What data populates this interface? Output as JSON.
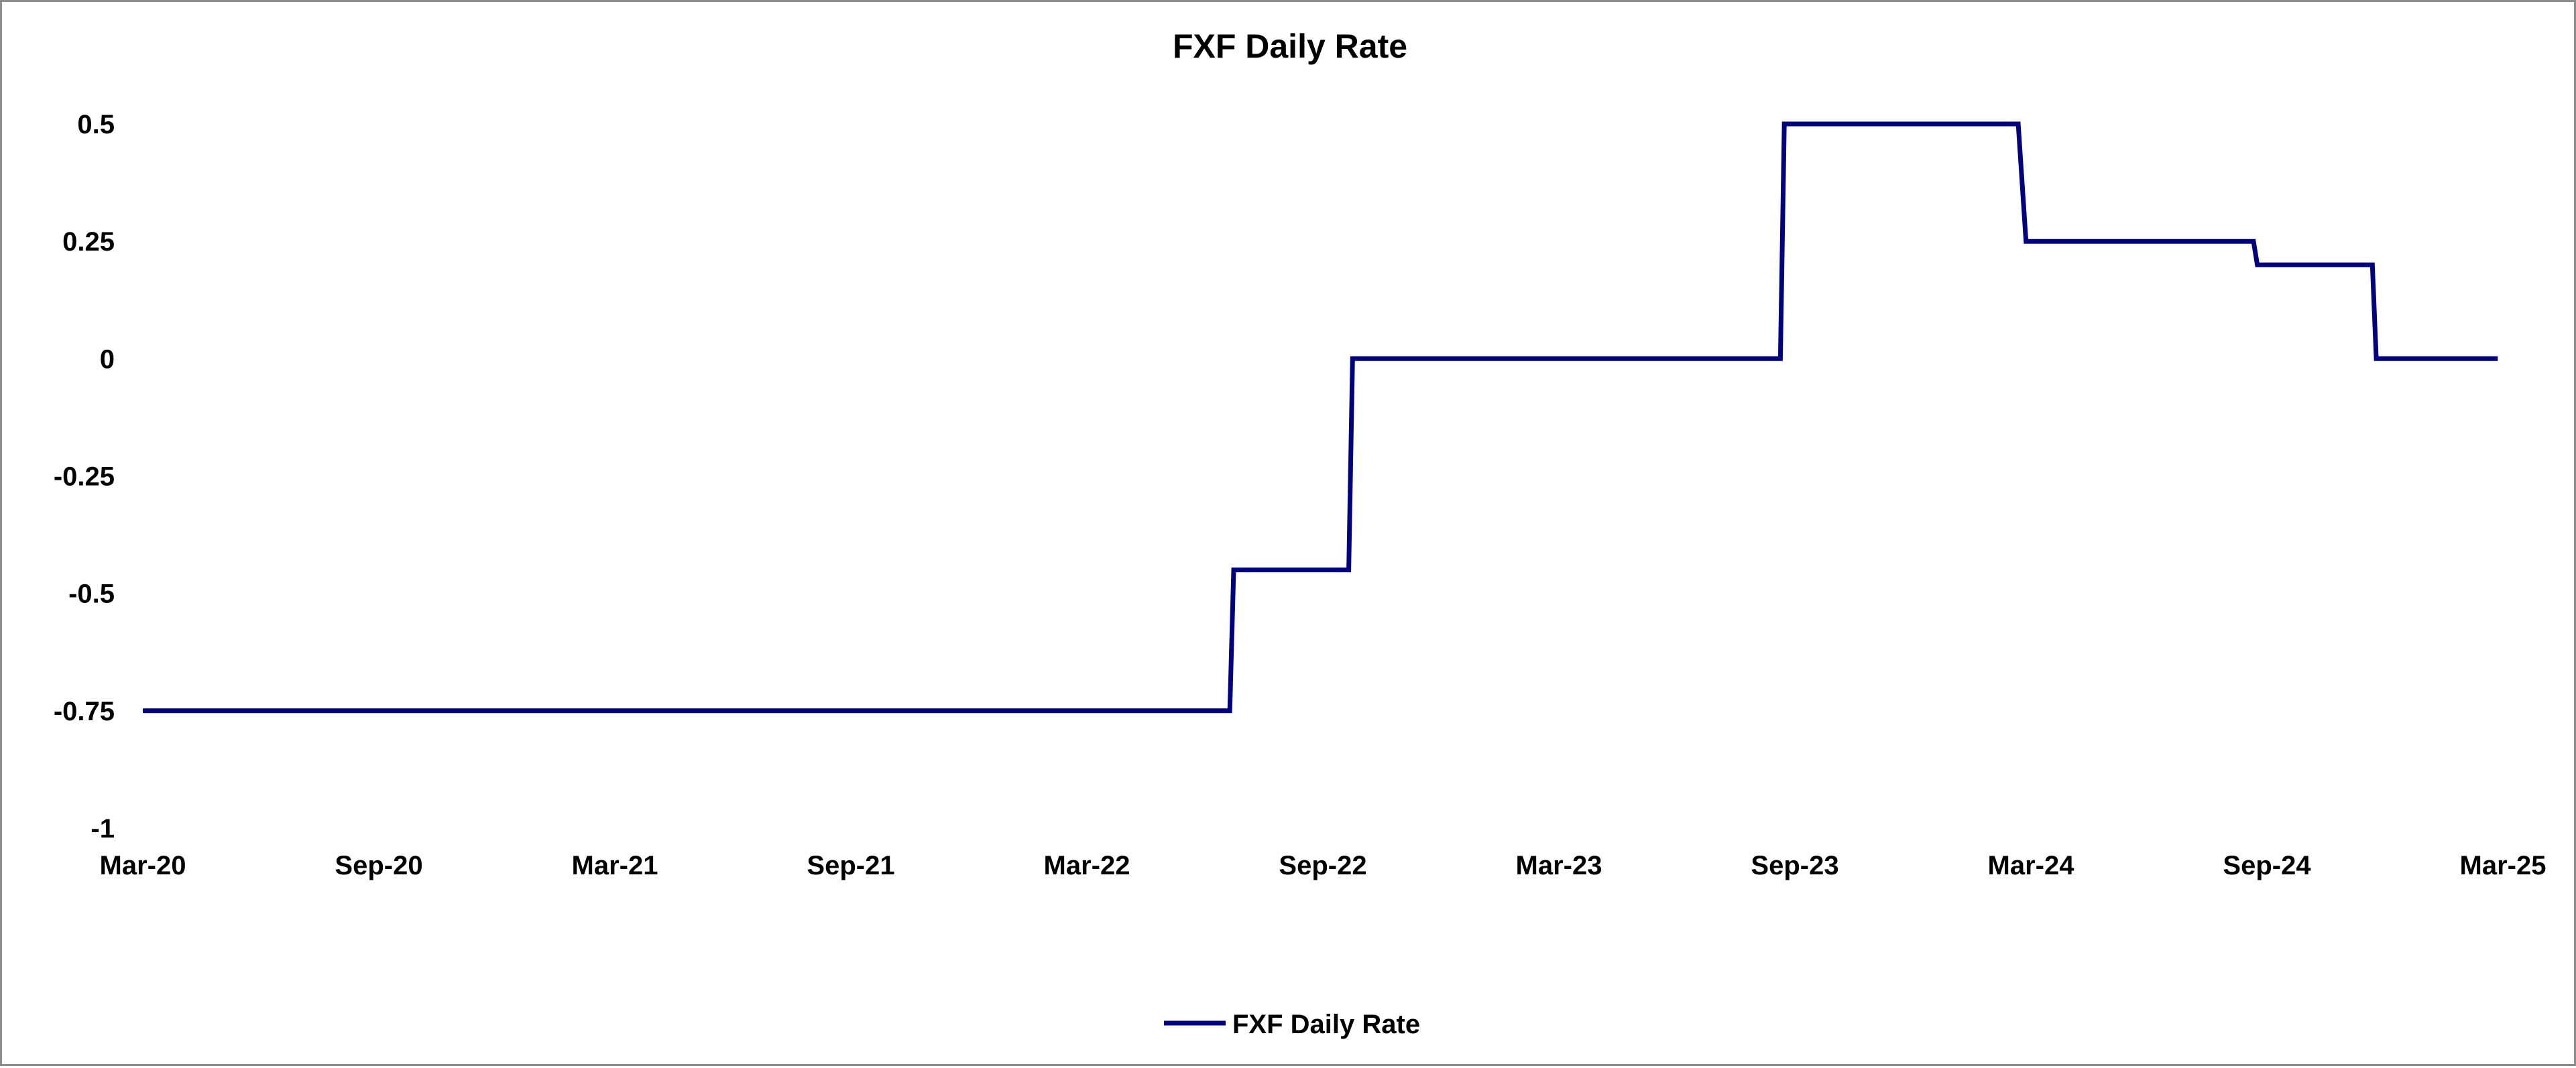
{
  "chart_data": {
    "type": "line",
    "title": "FXF Daily Rate",
    "xlabel": "",
    "ylabel": "",
    "x_ticks": [
      "Mar-20",
      "Sep-20",
      "Mar-21",
      "Sep-21",
      "Mar-22",
      "Sep-22",
      "Mar-23",
      "Sep-23",
      "Mar-24",
      "Sep-24",
      "Mar-25"
    ],
    "y_ticks": [
      "-1",
      "-0.75",
      "-0.5",
      "-0.25",
      "0",
      "0.25",
      "0.5"
    ],
    "xlim": [
      "2020-03-01",
      "2025-03-01"
    ],
    "ylim": [
      -1,
      0.5
    ],
    "grid": false,
    "legend_position": "bottom",
    "series": [
      {
        "name": "FXF Daily Rate",
        "color": "#000080",
        "step": true,
        "x": [
          "2020-03-01",
          "2022-06-20",
          "2022-06-23",
          "2022-09-20",
          "2022-09-23",
          "2023-08-20",
          "2023-08-23",
          "2024-02-20",
          "2024-02-26",
          "2024-08-20",
          "2024-08-23",
          "2024-11-20",
          "2024-11-23",
          "2025-02-25"
        ],
        "values": [
          -0.75,
          -0.75,
          -0.45,
          -0.45,
          0,
          0,
          0.5,
          0.5,
          0.25,
          0.25,
          0.2,
          0.2,
          0,
          0
        ]
      }
    ]
  }
}
